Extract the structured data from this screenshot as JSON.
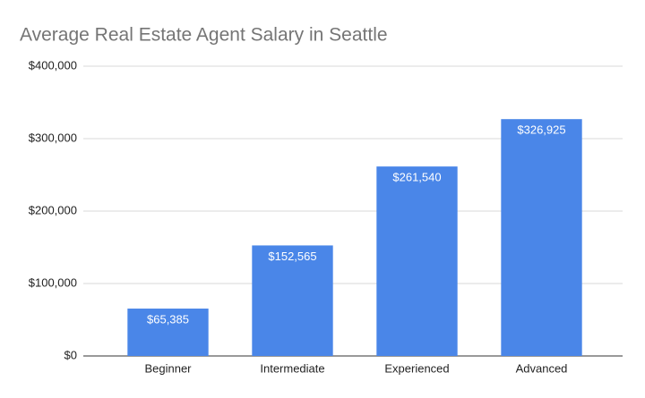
{
  "chart_data": {
    "type": "bar",
    "title": "Average Real Estate Agent Salary in Seattle",
    "categories": [
      "Beginner",
      "Intermediate",
      "Experienced",
      "Advanced"
    ],
    "values": [
      65385,
      152565,
      261540,
      326925
    ],
    "value_labels": [
      "$65,385",
      "$152,565",
      "$261,540",
      "$326,925"
    ],
    "color": "#4a86e8",
    "ylim": [
      0,
      400000
    ],
    "yticks": [
      {
        "value": 0,
        "label": "$0"
      },
      {
        "value": 100000,
        "label": "$100,000"
      },
      {
        "value": 200000,
        "label": "$200,000"
      },
      {
        "value": 300000,
        "label": "$300,000"
      },
      {
        "value": 400000,
        "label": "$400,000"
      }
    ],
    "grid": true
  }
}
